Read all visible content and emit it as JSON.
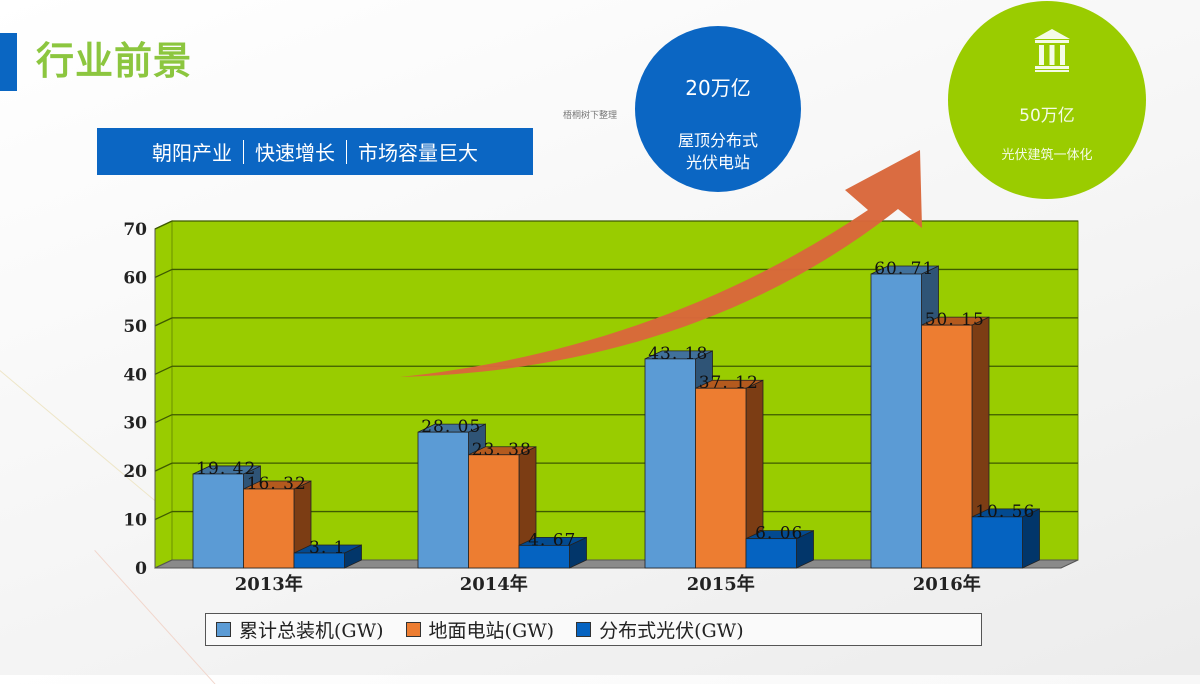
{
  "header": {
    "title": "行业前景",
    "tagline": [
      "朝阳产业",
      "快速增长",
      "市场容量巨大"
    ],
    "watermark": "梧桐树下整理"
  },
  "circles": {
    "blue": {
      "value": "20万亿",
      "label_line1": "屋顶分布式",
      "label_line2": "光伏电站",
      "color": "#0b66c3"
    },
    "green": {
      "value": "50万亿",
      "label": "光伏建筑一体化",
      "icon": "bank-building-icon",
      "color": "#9acc00"
    }
  },
  "colors": {
    "title_green": "#8cc63f",
    "accent_blue": "#0b66c3",
    "arrow_orange": "#d9673b",
    "plot_bg": "#99cc00",
    "series_1": "#5b9bd5",
    "series_2": "#ed7d31",
    "series_3": "#0563c1"
  },
  "chart_data": {
    "type": "bar",
    "style": "3d-clustered-column",
    "title": "",
    "xlabel": "",
    "ylabel": "",
    "categories": [
      "2013年",
      "2014年",
      "2015年",
      "2016年"
    ],
    "series": [
      {
        "name": "累计总装机(GW)",
        "values": [
          19.42,
          28.05,
          43.18,
          60.71
        ],
        "labels": [
          "19.42",
          "28.05",
          "43.18",
          "60.71"
        ]
      },
      {
        "name": "地面电站(GW)",
        "values": [
          16.32,
          23.38,
          37.12,
          50.15
        ],
        "labels": [
          "16.32",
          "23.38",
          "37.12",
          "50.15"
        ]
      },
      {
        "name": "分布式光伏(GW)",
        "values": [
          3.1,
          4.67,
          6.06,
          10.56
        ],
        "labels": [
          "3.1",
          "4.67",
          "6.06",
          "10.56"
        ]
      }
    ],
    "ylim": [
      0,
      70
    ],
    "yticks": [
      "0",
      "10",
      "20",
      "30",
      "40",
      "50",
      "60",
      "70"
    ],
    "grid": true,
    "legend_position": "bottom",
    "annotation": "upward growth arrow"
  }
}
